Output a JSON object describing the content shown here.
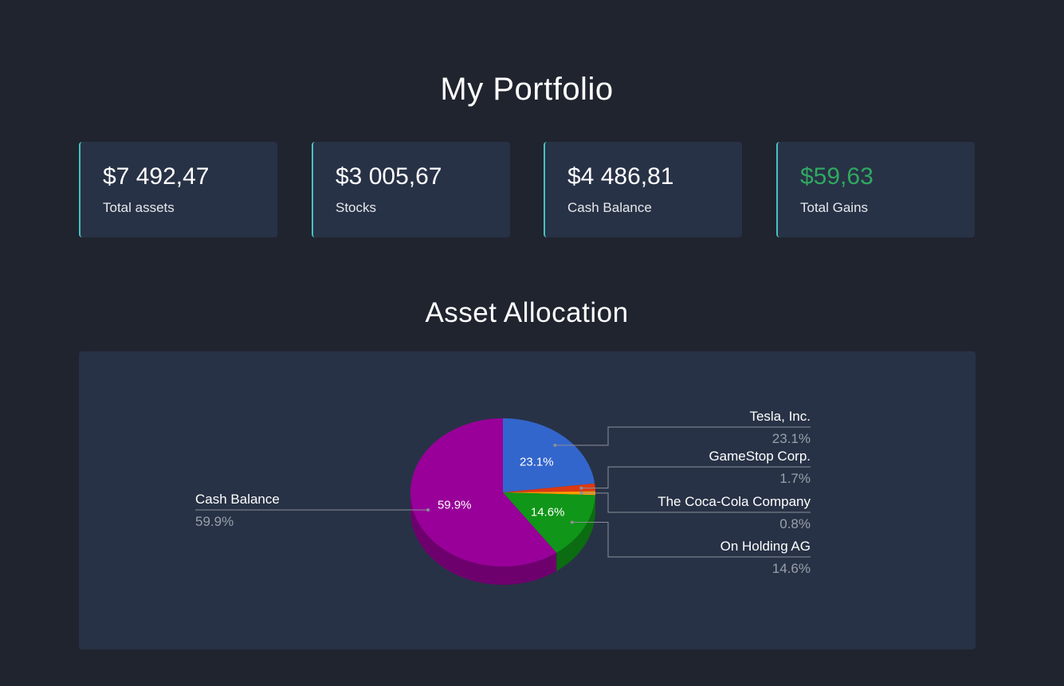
{
  "page": {
    "title": "My Portfolio",
    "section_title": "Asset Allocation"
  },
  "cards": [
    {
      "value": "$7 492,47",
      "label": "Total assets",
      "value_color": "#ffffff"
    },
    {
      "value": "$3 005,67",
      "label": "Stocks",
      "value_color": "#ffffff"
    },
    {
      "value": "$4 486,81",
      "label": "Cash Balance",
      "value_color": "#ffffff"
    },
    {
      "value": "$59,63",
      "label": "Total Gains",
      "value_color": "#2fa860"
    }
  ],
  "chart_data": {
    "type": "pie",
    "title": "",
    "style": "3d",
    "legend": "callout labels",
    "slices": [
      {
        "label": "Tesla, Inc.",
        "value": 23.1,
        "pct_label": "23.1%",
        "color": "#3366cc",
        "inner_label": "23.1%"
      },
      {
        "label": "GameStop Corp.",
        "value": 1.7,
        "pct_label": "1.7%",
        "color": "#dc3912",
        "inner_label": ""
      },
      {
        "label": "The Coca-Cola Company",
        "value": 0.8,
        "pct_label": "0.8%",
        "color": "#ff9900",
        "inner_label": ""
      },
      {
        "label": "On Holding AG",
        "value": 14.6,
        "pct_label": "14.6%",
        "color": "#109618",
        "inner_label": "14.6%"
      },
      {
        "label": "Cash Balance",
        "value": 59.9,
        "pct_label": "59.9%",
        "color": "#990099",
        "inner_label": "59.9%"
      }
    ]
  }
}
